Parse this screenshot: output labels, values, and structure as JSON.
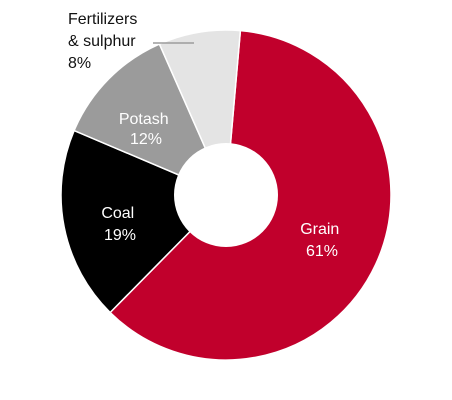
{
  "chart_data": {
    "type": "pie",
    "style": "donut",
    "slices": [
      {
        "label": "Grain",
        "value": 61,
        "value_label": "61%",
        "color": "#c1002c",
        "text_color": "#ffffff"
      },
      {
        "label": "Coal",
        "value": 19,
        "value_label": "19%",
        "color": "#000000",
        "text_color": "#ffffff"
      },
      {
        "label": "Potash",
        "value": 12,
        "value_label": "12%",
        "color": "#9b9b9b",
        "text_color": "#ffffff"
      },
      {
        "label": "Fertilizers\n& sulphur",
        "value": 8,
        "value_label": "8%",
        "color": "#e4e4e4",
        "text_color": "#111111"
      }
    ]
  }
}
